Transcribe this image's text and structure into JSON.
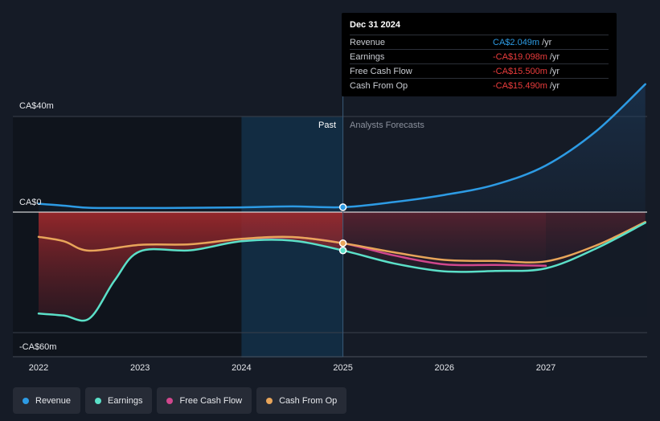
{
  "chart_data": {
    "type": "line",
    "y_axis": {
      "max_label": "CA$40m",
      "zero_label": "CA$0",
      "min_label": "-CA$60m",
      "ylim": [
        -60,
        40
      ]
    },
    "x_ticks": [
      "2022",
      "2023",
      "2024",
      "2025",
      "2026",
      "2027"
    ],
    "past_label": "Past",
    "forecast_label": "Analysts Forecasts",
    "series": [
      {
        "name": "Revenue",
        "color": "#2d9be4",
        "points": [
          [
            2022.0,
            3.5
          ],
          [
            2022.25,
            2.7
          ],
          [
            2022.5,
            1.8
          ],
          [
            2023.0,
            1.7
          ],
          [
            2023.5,
            1.8
          ],
          [
            2024.0,
            2.0
          ],
          [
            2024.5,
            2.4
          ],
          [
            2025.0,
            2.049
          ],
          [
            2025.5,
            4.2
          ],
          [
            2026.0,
            7.2
          ],
          [
            2026.5,
            11.5
          ],
          [
            2027.0,
            19.5
          ],
          [
            2027.5,
            34.0
          ],
          [
            2027.98,
            53.5
          ]
        ]
      },
      {
        "name": "Earnings",
        "color": "#5be0c8",
        "points": [
          [
            2022.0,
            -50.5
          ],
          [
            2022.25,
            -51.5
          ],
          [
            2022.5,
            -53.0
          ],
          [
            2022.75,
            -34.0
          ],
          [
            2023.0,
            -19.5
          ],
          [
            2023.5,
            -19.0
          ],
          [
            2024.0,
            -14.5
          ],
          [
            2024.5,
            -14.2
          ],
          [
            2025.0,
            -19.098
          ],
          [
            2025.5,
            -25.5
          ],
          [
            2026.0,
            -29.5
          ],
          [
            2026.5,
            -29.3
          ],
          [
            2027.0,
            -28.0
          ],
          [
            2027.5,
            -18.0
          ],
          [
            2027.98,
            -5.3
          ]
        ]
      },
      {
        "name": "Free Cash Flow",
        "color": "#d1478d",
        "points": [
          [
            2024.0,
            -13.5
          ],
          [
            2024.5,
            -12.5
          ],
          [
            2025.0,
            -15.5
          ],
          [
            2025.5,
            -21.5
          ],
          [
            2026.0,
            -26.0
          ],
          [
            2026.5,
            -26.3
          ],
          [
            2027.0,
            -26.7
          ]
        ]
      },
      {
        "name": "Cash From Op",
        "color": "#e8a55a",
        "points": [
          [
            2022.0,
            -12.3
          ],
          [
            2022.25,
            -14.5
          ],
          [
            2022.5,
            -19.2
          ],
          [
            2023.0,
            -16.3
          ],
          [
            2023.5,
            -16.0
          ],
          [
            2024.0,
            -13.3
          ],
          [
            2024.5,
            -12.4
          ],
          [
            2025.0,
            -15.49
          ],
          [
            2025.5,
            -20.0
          ],
          [
            2026.0,
            -23.8
          ],
          [
            2026.5,
            -24.3
          ],
          [
            2027.0,
            -24.5
          ],
          [
            2027.5,
            -16.5
          ],
          [
            2027.98,
            -4.9
          ]
        ]
      }
    ],
    "highlight": {
      "x": 2025.0
    },
    "legend": [
      {
        "label": "Revenue",
        "color": "#2d9be4"
      },
      {
        "label": "Earnings",
        "color": "#5be0c8"
      },
      {
        "label": "Free Cash Flow",
        "color": "#d1478d"
      },
      {
        "label": "Cash From Op",
        "color": "#e8a55a"
      }
    ]
  },
  "tooltip": {
    "date": "Dec 31 2024",
    "rows": [
      {
        "name": "Revenue",
        "value": "CA$2.049m",
        "unit": "/yr",
        "color": "#2d9be4"
      },
      {
        "name": "Earnings",
        "value": "-CA$19.098m",
        "unit": "/yr",
        "color": "#ea3c3c"
      },
      {
        "name": "Free Cash Flow",
        "value": "-CA$15.500m",
        "unit": "/yr",
        "color": "#ea3c3c"
      },
      {
        "name": "Cash From Op",
        "value": "-CA$15.490m",
        "unit": "/yr",
        "color": "#ea3c3c"
      }
    ]
  }
}
